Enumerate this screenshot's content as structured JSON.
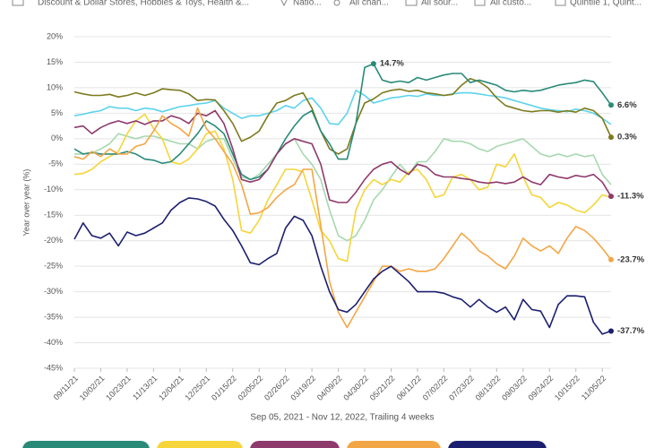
{
  "toolbar": [
    "Discount & Dollar Stores, Hobbies & Toys, Health &...",
    "Natio...",
    "All chan...",
    "All sour...",
    "All custo...",
    "Quintile 1, Quint..."
  ],
  "chart_data": {
    "type": "line",
    "x_label": "Sep 05, 2021 - Nov 12, 2022, Trailing 4 weeks",
    "y_label": "Year over year (%)",
    "categories": [
      "09/11/21",
      null,
      null,
      "10/02/21",
      null,
      null,
      "10/23/21",
      null,
      null,
      "11/13/21",
      null,
      null,
      "12/04/21",
      null,
      null,
      "12/25/21",
      null,
      null,
      "01/15/22",
      null,
      null,
      "02/05/22",
      null,
      null,
      "02/26/22",
      null,
      null,
      "03/19/22",
      null,
      null,
      "04/09/22",
      null,
      null,
      "04/30/22",
      null,
      null,
      "05/21/22",
      null,
      null,
      "06/11/22",
      null,
      null,
      "07/02/22",
      null,
      null,
      "07/23/22",
      null,
      null,
      "08/13/22",
      null,
      null,
      "09/03/22",
      null,
      null,
      "09/24/22",
      null,
      null,
      "10/15/22",
      null,
      null,
      "11/05/22",
      null
    ],
    "ylim": [
      -45,
      20
    ],
    "yticks": [
      {
        "value": 20,
        "label": "20%"
      },
      {
        "value": 15,
        "label": "15%"
      },
      {
        "value": 10,
        "label": "10%"
      },
      {
        "value": 5,
        "label": "5%"
      },
      {
        "value": 0,
        "label": "0%"
      },
      {
        "value": -5,
        "label": "-5%"
      },
      {
        "value": -10,
        "label": "-10%"
      },
      {
        "value": -15,
        "label": "-15%"
      },
      {
        "value": -20,
        "label": "-20%"
      },
      {
        "value": -25,
        "label": "-25%"
      },
      {
        "value": -30,
        "label": "-30%"
      },
      {
        "value": -35,
        "label": "-35%"
      },
      {
        "value": -40,
        "label": "-40%"
      },
      {
        "value": -45,
        "label": "-45%"
      }
    ],
    "grid": true,
    "series": [
      {
        "color": "#a7d8b0",
        "values": [
          -3,
          -3,
          -2.8,
          -2,
          -1,
          1,
          0.5,
          0,
          0.5,
          0.5,
          0,
          -0.5,
          -1,
          -1,
          -2,
          -0.5,
          0,
          0,
          -4,
          -7.5,
          -8,
          -7,
          -5,
          -3,
          -1,
          0,
          -3,
          -5,
          -8,
          -14,
          -19,
          -20,
          -19,
          -16,
          -12,
          -10,
          -7.5,
          -5,
          -7,
          -4.5,
          -4.5,
          -2.5,
          0,
          -0.5,
          -0.5,
          -1,
          -2,
          -2.5,
          -1.5,
          -1,
          -0.5,
          0,
          -1.5,
          -3,
          -3.5,
          -3,
          -3.5,
          -3,
          -3.5,
          -3.2,
          -7,
          -9
        ]
      },
      {
        "color": "#f5d53a",
        "values": [
          -7,
          -6.8,
          -6,
          -4.5,
          -3.5,
          -2.5,
          1,
          3.5,
          4.8,
          2,
          0,
          -4.5,
          -5,
          -4,
          -2,
          1,
          1.5,
          -2,
          -8,
          -18,
          -18.5,
          -16,
          -12,
          -9,
          -6,
          -6,
          -6.5,
          -12,
          -18,
          -20,
          -23.5,
          -24,
          -14,
          -10,
          -8,
          -9,
          -8,
          -8.5,
          -6.5,
          -6,
          -8,
          -11.5,
          -11,
          -7.5,
          -7,
          -8,
          -10,
          -9.5,
          -5,
          -5.5,
          -3,
          -7.5,
          -11,
          -11.5,
          -13.5,
          -12.5,
          -13,
          -14,
          -14.5,
          -13,
          -11,
          -11.5
        ]
      },
      {
        "color": "#5dd3ec",
        "values": [
          4.5,
          4.8,
          5.2,
          5.5,
          6.3,
          6,
          6,
          5.5,
          6,
          5.8,
          5.3,
          5.8,
          6.3,
          6.5,
          6.8,
          7,
          7.5,
          6,
          5,
          4,
          4.5,
          4.5,
          5,
          5.5,
          6.5,
          6,
          7.5,
          8,
          6,
          3,
          2.8,
          5,
          9.5,
          8.5,
          7,
          7.5,
          8,
          8.2,
          8.5,
          8.3,
          8.8,
          8.5,
          8.5,
          8.8,
          9,
          9,
          8.8,
          8.5,
          8.3,
          8,
          7.5,
          7,
          6.5,
          6,
          5.7,
          5.5,
          5.3,
          5.8,
          5.5,
          5,
          4,
          2.8
        ]
      },
      {
        "color": "#7d7a1e",
        "values": [
          9.2,
          8.8,
          8.5,
          8.5,
          8.7,
          8.2,
          8.5,
          9,
          8.5,
          9,
          9.8,
          9.6,
          9.5,
          8.8,
          7.5,
          7.7,
          7.6,
          5.5,
          3,
          -0.5,
          0.3,
          1.5,
          4.5,
          7,
          7.5,
          8.5,
          9,
          6,
          1.5,
          -2,
          -3,
          -2,
          3,
          7,
          7.8,
          9,
          9.5,
          9.7,
          9.3,
          9.5,
          9,
          8.8,
          8.5,
          8.7,
          10.5,
          11.8,
          11.2,
          10,
          8,
          6.5,
          6,
          5.5,
          5.3,
          5.5,
          5.5,
          5.2,
          5.5,
          5.2,
          6,
          5.5,
          4,
          0.3
        ],
        "value_labels": [
          null,
          null,
          null,
          null,
          null,
          null,
          null,
          null,
          null,
          null,
          null,
          null,
          null,
          null,
          null,
          null,
          null,
          null,
          null,
          null,
          null,
          null,
          null,
          null,
          null,
          null,
          null,
          null,
          null,
          null,
          null,
          null,
          null,
          null,
          null,
          null,
          null,
          null,
          null,
          null,
          null,
          null,
          null,
          null,
          null,
          null,
          null,
          null,
          null,
          null,
          null,
          null,
          null,
          null,
          null,
          null,
          null,
          null,
          null,
          null,
          null,
          "0.3%"
        ]
      },
      {
        "color": "#2a8a78",
        "values": [
          -2,
          -3,
          -2.7,
          -3,
          -3,
          -3,
          -2.5,
          -3,
          -4,
          -4.2,
          -4.8,
          -4.5,
          -3,
          -1,
          1,
          3.5,
          2.5,
          1,
          -3,
          -7,
          -8,
          -7.5,
          -6,
          -3,
          0,
          2.5,
          4.5,
          5.5,
          1.5,
          -1,
          -4,
          -4,
          3,
          14,
          14.7,
          11.5,
          11,
          11.3,
          11,
          12,
          11.5,
          12,
          12.5,
          12.8,
          12.8,
          11,
          11.5,
          11,
          10.5,
          9.5,
          9.2,
          9.5,
          9.3,
          9.5,
          10,
          10.5,
          10.8,
          11,
          11.5,
          11.2,
          9,
          6.6
        ],
        "value_labels": [
          null,
          null,
          null,
          null,
          null,
          null,
          null,
          null,
          null,
          null,
          null,
          null,
          null,
          null,
          null,
          null,
          null,
          null,
          null,
          null,
          null,
          null,
          null,
          null,
          null,
          null,
          null,
          null,
          null,
          null,
          null,
          null,
          null,
          null,
          "14.7%",
          null,
          null,
          null,
          null,
          null,
          null,
          null,
          null,
          null,
          null,
          null,
          null,
          null,
          null,
          null,
          null,
          null,
          null,
          null,
          null,
          null,
          null,
          null,
          null,
          null,
          null,
          "6.6%"
        ]
      },
      {
        "color": "#8e3a6c",
        "values": [
          2.2,
          2.5,
          1,
          2.2,
          3,
          3.5,
          3,
          3.5,
          2.8,
          3.5,
          3.5,
          4.5,
          4,
          3,
          5,
          4.5,
          5.5,
          3,
          -2,
          -8,
          -8.5,
          -8,
          -6,
          -3,
          -1,
          0,
          -0.5,
          -1,
          -5,
          -12,
          -12.5,
          -12.5,
          -10.5,
          -8,
          -6,
          -5,
          -4.5,
          -6,
          -7,
          -5,
          -5.5,
          -7,
          -7.5,
          -7.5,
          -7.8,
          -8,
          -8.5,
          -8.7,
          -8.5,
          -8.8,
          -8.5,
          -7.5,
          -8.5,
          -9,
          -7,
          -7.5,
          -7.8,
          -7.2,
          -7.5,
          -7,
          -8.5,
          -11.3
        ],
        "value_labels": [
          null,
          null,
          null,
          null,
          null,
          null,
          null,
          null,
          null,
          null,
          null,
          null,
          null,
          null,
          null,
          null,
          null,
          null,
          null,
          null,
          null,
          null,
          null,
          null,
          null,
          null,
          null,
          null,
          null,
          null,
          null,
          null,
          null,
          null,
          null,
          null,
          null,
          null,
          null,
          null,
          null,
          null,
          null,
          null,
          null,
          null,
          null,
          null,
          null,
          null,
          null,
          null,
          null,
          null,
          null,
          null,
          null,
          null,
          null,
          null,
          null,
          "-11.3%"
        ]
      },
      {
        "color": "#f3a645",
        "values": [
          -3.5,
          -4,
          -2.5,
          -3.5,
          -2,
          -3,
          -3,
          -1.5,
          -1,
          1.5,
          4.5,
          3,
          2,
          0.5,
          6,
          2,
          0,
          -2.5,
          -5,
          -9,
          -14.8,
          -14.5,
          -13.5,
          -11.5,
          -10,
          -9,
          -6,
          -6,
          -17,
          -28,
          -34,
          -37,
          -34,
          -31,
          -28,
          -25,
          -25,
          -26,
          -25.5,
          -26,
          -26,
          -25.5,
          -23.5,
          -21,
          -18.5,
          -20,
          -22,
          -23,
          -24.5,
          -25.5,
          -23,
          -19.5,
          -21,
          -22,
          -21,
          -22.5,
          -19.5,
          -17.2,
          -18,
          -19.5,
          -21.5,
          -23.7
        ],
        "value_labels": [
          null,
          null,
          null,
          null,
          null,
          null,
          null,
          null,
          null,
          null,
          null,
          null,
          null,
          null,
          null,
          null,
          null,
          null,
          null,
          null,
          null,
          null,
          null,
          null,
          null,
          null,
          null,
          null,
          null,
          null,
          null,
          null,
          null,
          null,
          null,
          null,
          null,
          null,
          null,
          null,
          null,
          null,
          null,
          null,
          null,
          null,
          null,
          null,
          null,
          null,
          null,
          null,
          null,
          null,
          null,
          null,
          null,
          null,
          null,
          null,
          null,
          "-23.7%"
        ]
      },
      {
        "color": "#1c1f6f",
        "values": [
          -19.7,
          -16.5,
          -19,
          -19.5,
          -18.5,
          -21,
          -18.3,
          -19,
          -18.5,
          -17.5,
          -16.5,
          -14,
          -12.5,
          -11.6,
          -11.8,
          -12.3,
          -13.2,
          -15.8,
          -18,
          -21,
          -24.3,
          -24.7,
          -23.5,
          -22.5,
          -17.5,
          -15.2,
          -16,
          -19,
          -25,
          -30,
          -33.5,
          -34,
          -32.5,
          -30,
          -27.5,
          -26,
          -25,
          -26.5,
          -28,
          -30,
          -30,
          -30,
          -30.3,
          -31,
          -31.5,
          -33,
          -31.5,
          -33,
          -34,
          -33,
          -35.5,
          -31.5,
          -33.5,
          -33.8,
          -37,
          -32.5,
          -30.8,
          -30.8,
          -31,
          -36,
          -38.3,
          -37.7
        ],
        "value_labels": [
          null,
          null,
          null,
          null,
          null,
          null,
          null,
          null,
          null,
          null,
          null,
          null,
          null,
          null,
          null,
          null,
          null,
          null,
          null,
          null,
          null,
          null,
          null,
          null,
          null,
          null,
          null,
          null,
          null,
          null,
          null,
          null,
          null,
          null,
          null,
          null,
          null,
          null,
          null,
          null,
          null,
          null,
          null,
          null,
          null,
          null,
          null,
          null,
          null,
          null,
          null,
          null,
          null,
          null,
          null,
          null,
          null,
          null,
          null,
          null,
          null,
          "-37.7%"
        ]
      }
    ]
  }
}
